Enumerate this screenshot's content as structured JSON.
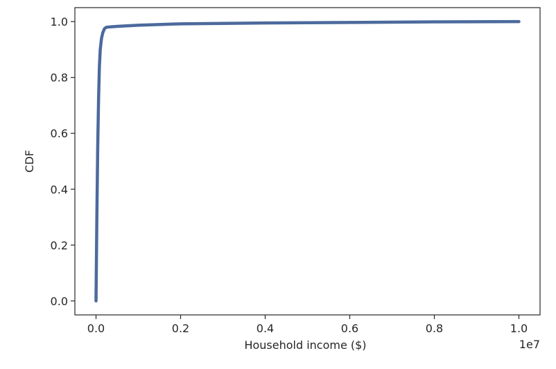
{
  "chart_data": {
    "type": "line",
    "title": "",
    "xlabel": "Household income ($)",
    "ylabel": "CDF",
    "offset_label": "1e7",
    "xlim": [
      -0.05,
      1.05
    ],
    "ylim": [
      -0.05,
      1.05
    ],
    "x_ticks": [
      0.0,
      0.2,
      0.4,
      0.6,
      0.8,
      1.0
    ],
    "x_tick_labels": [
      "0.0",
      "0.2",
      "0.4",
      "0.6",
      "0.8",
      "1.0"
    ],
    "y_ticks": [
      0.0,
      0.2,
      0.4,
      0.6,
      0.8,
      1.0
    ],
    "y_tick_labels": [
      "0.0",
      "0.2",
      "0.4",
      "0.6",
      "0.8",
      "1.0"
    ],
    "grid": false,
    "line_color": "#4c6a9c",
    "series": [
      {
        "x": [
          0.0,
          0.002,
          0.004,
          0.006,
          0.008,
          0.01,
          0.013,
          0.016,
          0.02,
          0.025,
          0.05,
          0.1,
          0.2,
          0.4,
          0.6,
          0.8,
          1.0
        ],
        "y": [
          0.0,
          0.3,
          0.55,
          0.72,
          0.84,
          0.9,
          0.94,
          0.96,
          0.975,
          0.98,
          0.983,
          0.987,
          0.992,
          0.995,
          0.997,
          0.999,
          1.0
        ]
      }
    ]
  }
}
